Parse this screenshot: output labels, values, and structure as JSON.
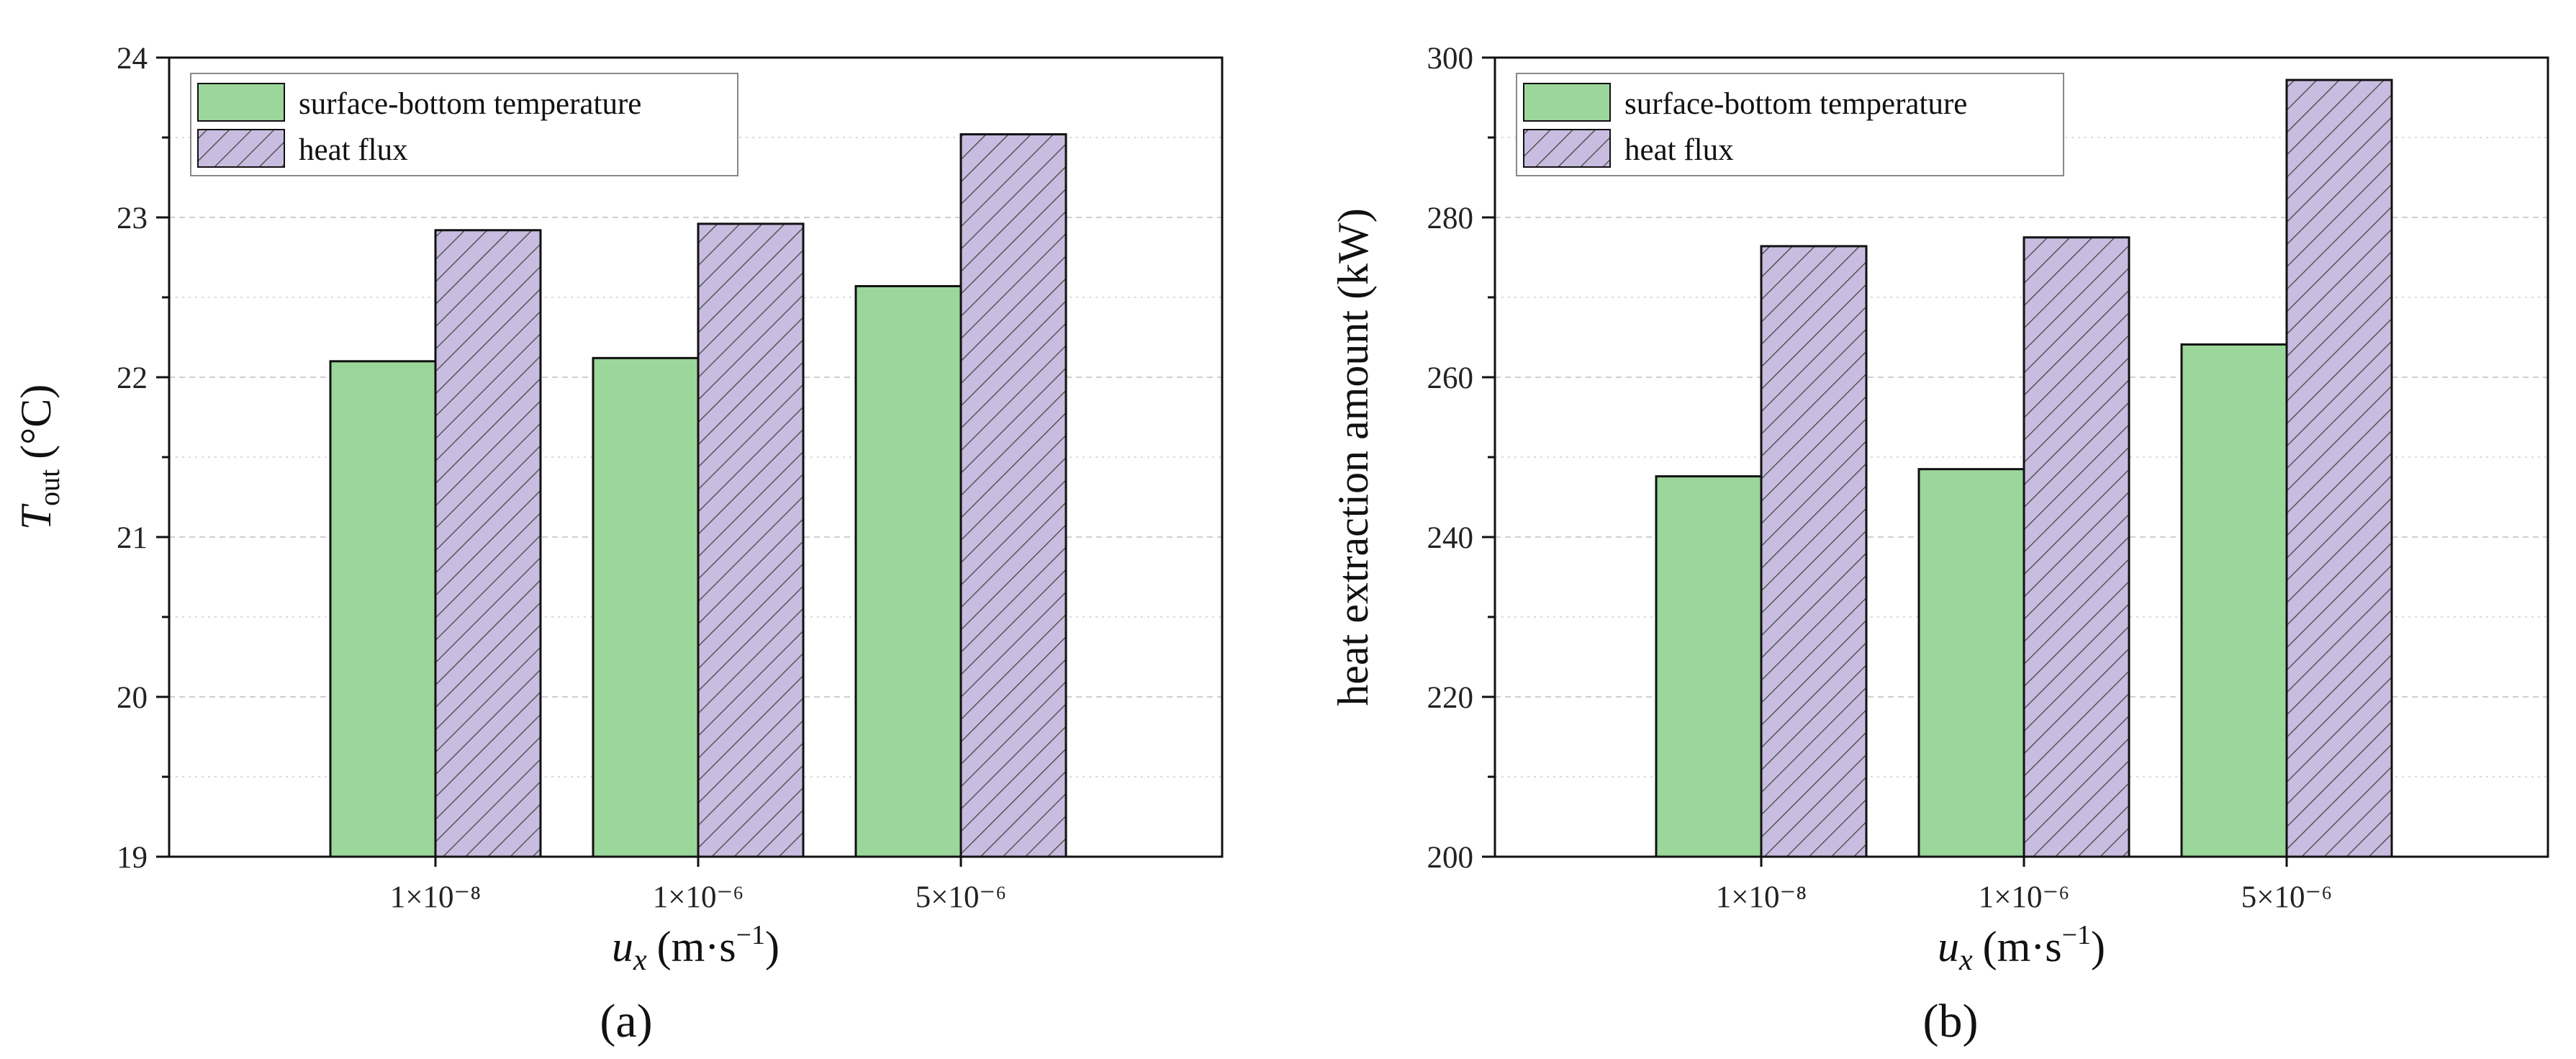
{
  "colors": {
    "temperature_fill": "#9bd69b",
    "flux_fill": "#c8bde0",
    "hatch": "#555555",
    "grid": "#cfcfcf",
    "axis": "#111111"
  },
  "legend": {
    "series_1": "surface-bottom temperature",
    "series_2": "heat flux"
  },
  "chart_data": [
    {
      "type": "bar",
      "panel_label": "(a)",
      "categories": [
        "1×10⁻⁸",
        "1×10⁻⁶",
        "5×10⁻⁶"
      ],
      "series": [
        {
          "name": "surface-bottom temperature",
          "values": [
            22.1,
            22.12,
            22.57
          ]
        },
        {
          "name": "heat flux",
          "values": [
            22.92,
            22.96,
            23.52
          ]
        }
      ],
      "xlabel": {
        "main": "u",
        "sub": "x",
        "units": "(m·s",
        "exp": "−1",
        "close": ")"
      },
      "ylabel": {
        "main": "T",
        "sub": "out",
        "units": "(°C)"
      },
      "ylim": [
        19,
        24
      ],
      "yticks": [
        19,
        20,
        21,
        22,
        23,
        24
      ],
      "grid": true,
      "legend_position": "top-left"
    },
    {
      "type": "bar",
      "panel_label": "(b)",
      "categories": [
        "1×10⁻⁸",
        "1×10⁻⁶",
        "5×10⁻⁶"
      ],
      "series": [
        {
          "name": "surface-bottom temperature",
          "values": [
            247.6,
            248.5,
            264.1
          ]
        },
        {
          "name": "heat flux",
          "values": [
            276.4,
            277.5,
            297.2
          ]
        }
      ],
      "xlabel": {
        "main": "u",
        "sub": "x",
        "units": "(m·s",
        "exp": "−1",
        "close": ")"
      },
      "ylabel": {
        "text": "heat extraction amount (kW)"
      },
      "ylim": [
        200,
        300
      ],
      "yticks": [
        200,
        220,
        240,
        260,
        280,
        300
      ],
      "grid": true,
      "legend_position": "top-left"
    }
  ]
}
